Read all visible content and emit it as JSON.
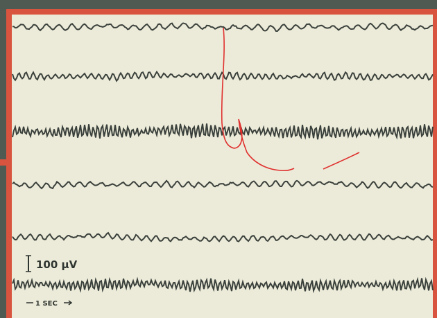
{
  "scale_labels": {
    "amplitude": "100 μV",
    "time": "1 SEC"
  }
}
